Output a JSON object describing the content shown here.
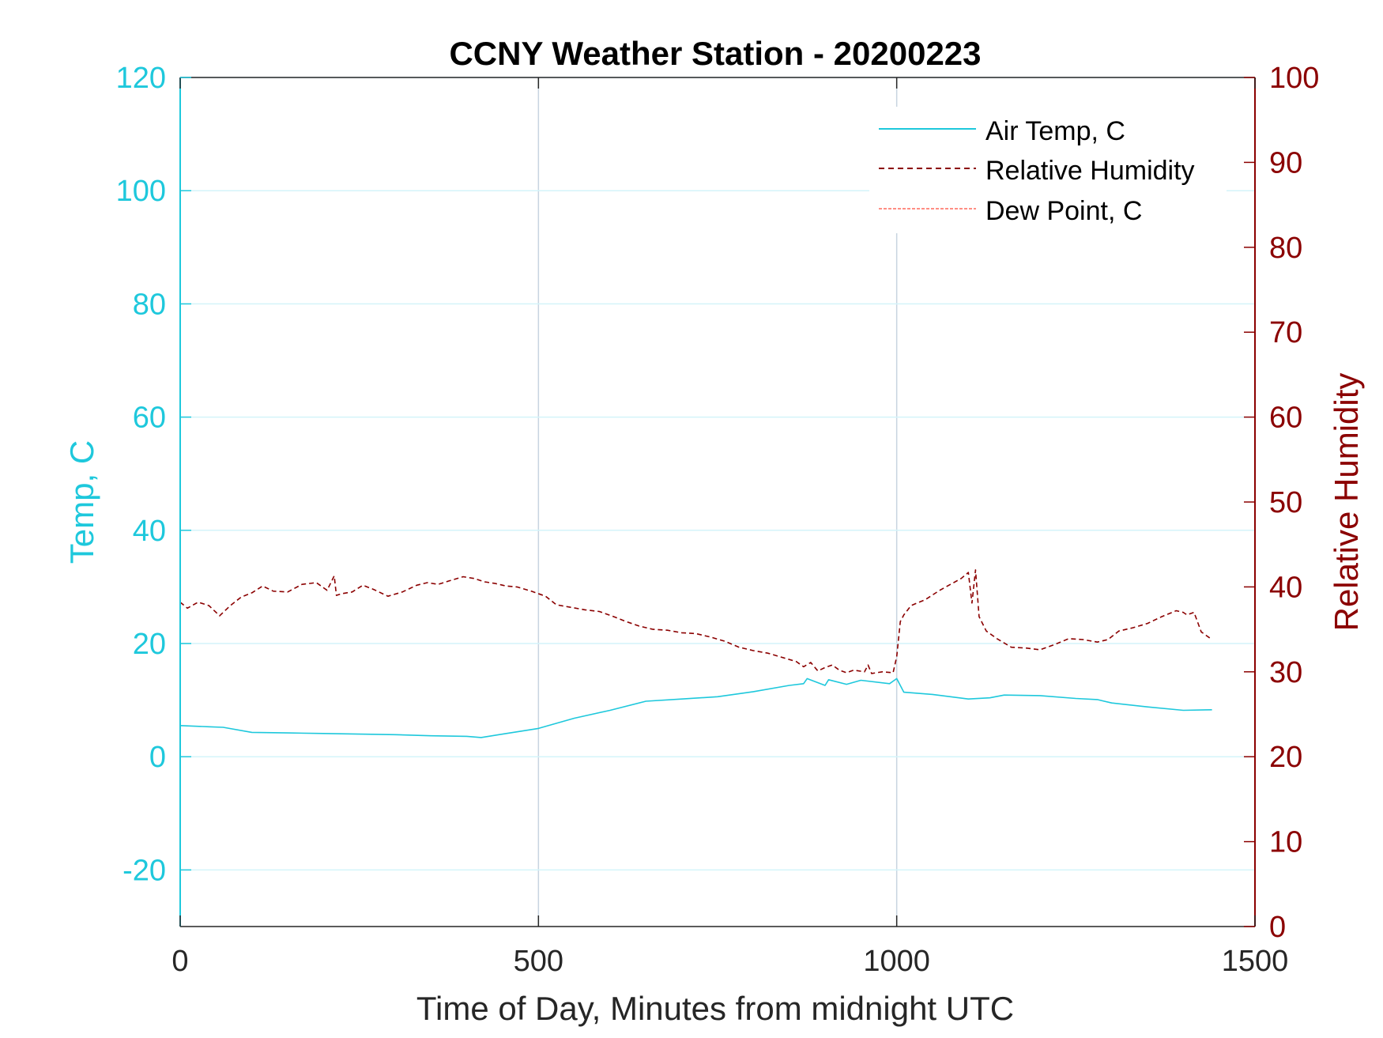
{
  "chart_data": {
    "type": "line",
    "title": "CCNY Weather Station - 20200223",
    "xlabel": "Time of Day, Minutes from midnight UTC",
    "ylabel_left": "Temp, C",
    "ylabel_right": "Relative Humidity",
    "xlim": [
      0,
      1500
    ],
    "ylim_left": [
      -30,
      120
    ],
    "ylim_right": [
      0,
      100
    ],
    "x_ticks": [
      "0",
      "500",
      "1000",
      "1500"
    ],
    "y_ticks_left": [
      "-20",
      "0",
      "20",
      "40",
      "60",
      "80",
      "100",
      "120"
    ],
    "y_ticks_right": [
      "0",
      "10",
      "20",
      "30",
      "40",
      "50",
      "60",
      "70",
      "80",
      "90",
      "100"
    ],
    "legend_position": "top-right",
    "colors": {
      "left_axis": "#1ec8dc",
      "right_axis": "#8b0000",
      "air_temp": "#1ec8dc",
      "humidity": "#8b0000",
      "dew_point": "#ff4a3a",
      "x_grid": "#c8d4e0",
      "y_grid": "#d4f4fa"
    },
    "series": [
      {
        "name": "Air Temp, C",
        "axis": "left",
        "style": "solid",
        "x": [
          0,
          40,
          60,
          100,
          150,
          200,
          250,
          300,
          350,
          400,
          420,
          450,
          500,
          550,
          600,
          650,
          700,
          750,
          800,
          850,
          870,
          875,
          900,
          905,
          930,
          950,
          990,
          1000,
          1010,
          1050,
          1100,
          1130,
          1150,
          1200,
          1250,
          1280,
          1300,
          1350,
          1400,
          1440
        ],
        "values": [
          5.5,
          5.3,
          5.2,
          4.3,
          4.2,
          4.1,
          4.0,
          3.9,
          3.7,
          3.6,
          3.4,
          4.0,
          5.0,
          6.8,
          8.2,
          9.8,
          10.2,
          10.6,
          11.5,
          12.6,
          12.9,
          13.8,
          12.6,
          13.6,
          12.8,
          13.5,
          12.9,
          13.8,
          11.4,
          11.0,
          10.2,
          10.4,
          10.9,
          10.8,
          10.3,
          10.1,
          9.5,
          8.8,
          8.2,
          8.3
        ]
      },
      {
        "name": "Relative Humidity",
        "axis": "right",
        "style": "dashed",
        "x": [
          0,
          10,
          25,
          40,
          55,
          70,
          85,
          100,
          115,
          130,
          150,
          170,
          190,
          205,
          215,
          218,
          225,
          240,
          255,
          270,
          290,
          310,
          330,
          345,
          360,
          375,
          395,
          410,
          425,
          440,
          455,
          470,
          490,
          510,
          525,
          545,
          565,
          585,
          605,
          620,
          640,
          660,
          680,
          700,
          720,
          740,
          760,
          780,
          800,
          820,
          840,
          860,
          870,
          880,
          890,
          900,
          910,
          920,
          930,
          940,
          955,
          960,
          965,
          980,
          995,
          1000,
          1005,
          1010,
          1020,
          1040,
          1060,
          1075,
          1090,
          1100,
          1105,
          1110,
          1115,
          1125,
          1140,
          1160,
          1180,
          1200,
          1220,
          1240,
          1260,
          1280,
          1295,
          1310,
          1330,
          1350,
          1370,
          1390,
          1400,
          1405,
          1415,
          1425,
          1440
        ],
        "values": [
          38.2,
          37.5,
          38.2,
          37.8,
          36.6,
          37.8,
          38.8,
          39.3,
          40.1,
          39.5,
          39.4,
          40.3,
          40.5,
          39.6,
          41.3,
          39.0,
          39.2,
          39.4,
          40.2,
          39.7,
          38.9,
          39.4,
          40.2,
          40.5,
          40.3,
          40.7,
          41.2,
          41.0,
          40.6,
          40.4,
          40.1,
          40.0,
          39.5,
          38.9,
          37.9,
          37.6,
          37.3,
          37.1,
          36.5,
          36.0,
          35.4,
          35.0,
          34.9,
          34.6,
          34.5,
          34.1,
          33.6,
          32.9,
          32.5,
          32.2,
          31.7,
          31.2,
          30.6,
          31.1,
          30.1,
          30.5,
          30.8,
          30.2,
          29.9,
          30.2,
          30.0,
          30.8,
          29.8,
          30.0,
          29.9,
          31.8,
          35.9,
          36.7,
          37.8,
          38.5,
          39.6,
          40.3,
          41.0,
          41.7,
          38.1,
          42.0,
          36.5,
          34.8,
          33.9,
          32.9,
          32.8,
          32.6,
          33.2,
          33.9,
          33.8,
          33.5,
          33.8,
          34.8,
          35.2,
          35.7,
          36.5,
          37.2,
          37.0,
          36.7,
          37.0,
          34.7,
          33.8
        ]
      },
      {
        "name": "Dew Point, C",
        "axis": "left",
        "style": "dash-dot",
        "x": [],
        "values": []
      }
    ]
  }
}
